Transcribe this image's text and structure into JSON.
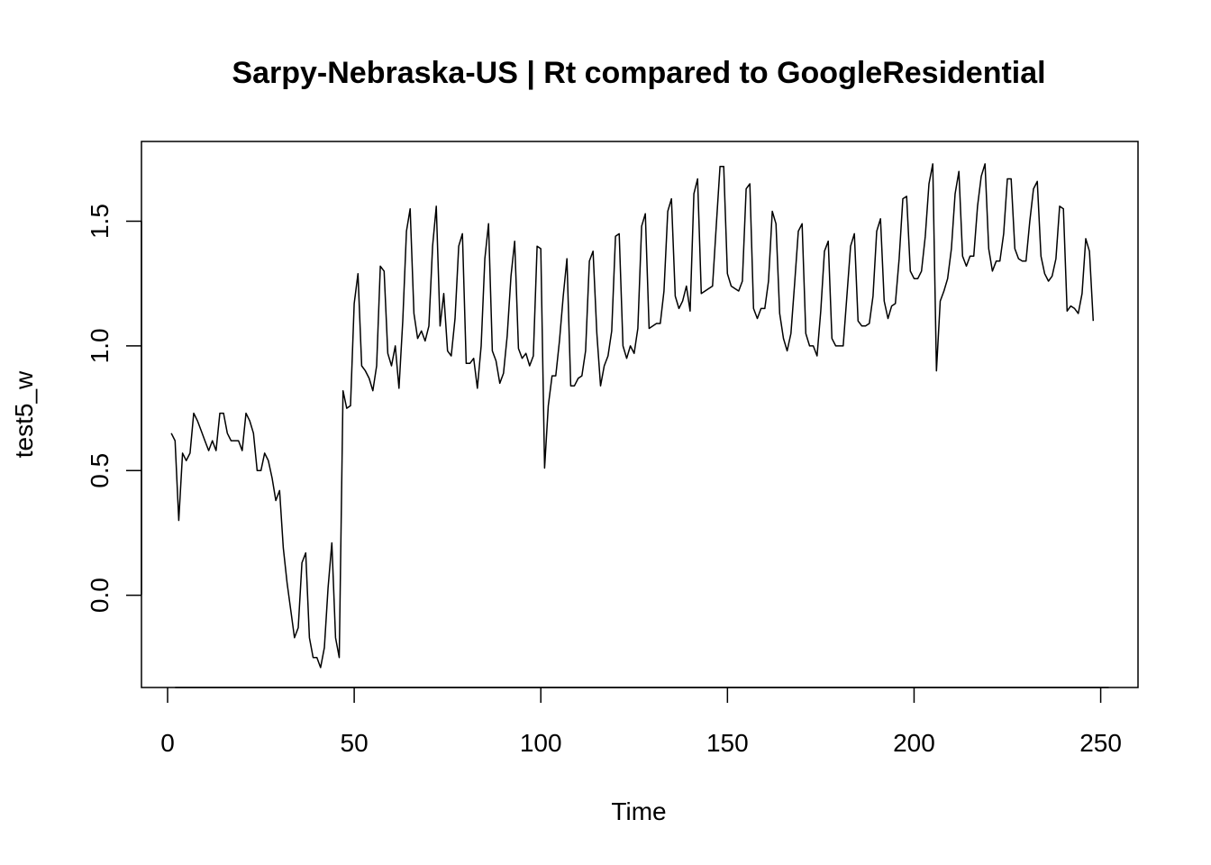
{
  "chart_data": {
    "type": "line",
    "title": "Sarpy-Nebraska-US | Rt compared to GoogleResidential",
    "xlabel": "Time",
    "ylabel": "test5_w",
    "xlim": [
      -7,
      260
    ],
    "ylim": [
      -0.37,
      1.82
    ],
    "xticks": [
      0,
      50,
      100,
      150,
      200,
      250
    ],
    "yticks": [
      0.0,
      0.5,
      1.0,
      1.5
    ],
    "xtick_labels": [
      "0",
      "50",
      "100",
      "150",
      "200",
      "250"
    ],
    "ytick_labels": [
      "0.0",
      "0.5",
      "1.0",
      "1.5"
    ],
    "grid": false,
    "series": [
      {
        "x": [
          1,
          2,
          3,
          4,
          5,
          6,
          7,
          8,
          9,
          10,
          11,
          12,
          13,
          14,
          15,
          16,
          17,
          18,
          19,
          20,
          21,
          22,
          23,
          24,
          25,
          26,
          27,
          28,
          29,
          30,
          31,
          32,
          33,
          34,
          35,
          36,
          37,
          38,
          39,
          40,
          41,
          42,
          43,
          44,
          45,
          46,
          47,
          48,
          49,
          50,
          51,
          52,
          53,
          54,
          55,
          56,
          57,
          58,
          59,
          60,
          61,
          62,
          63,
          64,
          65,
          66,
          67,
          68,
          69,
          70,
          71,
          72,
          73,
          74,
          75,
          76,
          77,
          78,
          79,
          80,
          81,
          82,
          83,
          84,
          85,
          86,
          87,
          88,
          89,
          90,
          91,
          92,
          93,
          94,
          95,
          96,
          97,
          98,
          99,
          100,
          101,
          102,
          103,
          104,
          105,
          106,
          107,
          108,
          109,
          110,
          111,
          112,
          113,
          114,
          115,
          116,
          117,
          118,
          119,
          120,
          121,
          122,
          123,
          124,
          125,
          126,
          127,
          128,
          129,
          130,
          131,
          132,
          133,
          134,
          135,
          136,
          137,
          138,
          139,
          140,
          141,
          142,
          143,
          144,
          145,
          146,
          147,
          148,
          149,
          150,
          151,
          152,
          153,
          154,
          155,
          156,
          157,
          158,
          159,
          160,
          161,
          162,
          163,
          164,
          165,
          166,
          167,
          168,
          169,
          170,
          171,
          172,
          173,
          174,
          175,
          176,
          177,
          178,
          179,
          180,
          181,
          182,
          183,
          184,
          185,
          186,
          187,
          188,
          189,
          190,
          191,
          192,
          193,
          194,
          195,
          196,
          197,
          198,
          199,
          200,
          201,
          202,
          203,
          204,
          205,
          206,
          207,
          208,
          209,
          210,
          211,
          212,
          213,
          214,
          215,
          216,
          217,
          218,
          219,
          220,
          221,
          222,
          223,
          224,
          225,
          226,
          227,
          228,
          229,
          230,
          231,
          232,
          233,
          234,
          235,
          236,
          237,
          238,
          239,
          240,
          241,
          242,
          243,
          244,
          245,
          246,
          247,
          248
        ],
        "values": [
          0.65,
          0.62,
          0.3,
          0.57,
          0.54,
          0.57,
          0.73,
          0.7,
          0.66,
          0.62,
          0.58,
          0.62,
          0.58,
          0.73,
          0.73,
          0.65,
          0.62,
          0.62,
          0.62,
          0.58,
          0.73,
          0.7,
          0.65,
          0.5,
          0.5,
          0.57,
          0.54,
          0.47,
          0.38,
          0.42,
          0.19,
          0.05,
          -0.06,
          -0.17,
          -0.13,
          0.13,
          0.17,
          -0.17,
          -0.25,
          -0.25,
          -0.29,
          -0.21,
          0.03,
          0.21,
          -0.17,
          -0.25,
          0.82,
          0.75,
          0.76,
          1.17,
          1.29,
          0.92,
          0.9,
          0.87,
          0.82,
          0.92,
          1.32,
          1.3,
          0.97,
          0.92,
          1.0,
          0.83,
          1.1,
          1.46,
          1.55,
          1.13,
          1.03,
          1.06,
          1.02,
          1.08,
          1.4,
          1.56,
          1.08,
          1.21,
          0.98,
          0.96,
          1.11,
          1.4,
          1.45,
          0.93,
          0.93,
          0.95,
          0.83,
          1.0,
          1.35,
          1.49,
          0.98,
          0.94,
          0.85,
          0.89,
          1.04,
          1.28,
          1.42,
          0.99,
          0.95,
          0.97,
          0.92,
          0.96,
          1.4,
          1.39,
          0.51,
          0.76,
          0.88,
          0.88,
          1.02,
          1.2,
          1.35,
          0.84,
          0.84,
          0.87,
          0.88,
          0.98,
          1.34,
          1.38,
          1.05,
          0.84,
          0.92,
          0.96,
          1.06,
          1.44,
          1.45,
          1.0,
          0.95,
          1.0,
          0.97,
          1.07,
          1.48,
          1.53,
          1.07,
          1.08,
          1.09,
          1.09,
          1.22,
          1.54,
          1.59,
          1.2,
          1.15,
          1.18,
          1.24,
          1.14,
          1.61,
          1.67,
          1.21,
          1.22,
          1.23,
          1.24,
          1.48,
          1.72,
          1.72,
          1.29,
          1.24,
          1.23,
          1.22,
          1.26,
          1.63,
          1.65,
          1.15,
          1.11,
          1.15,
          1.15,
          1.26,
          1.54,
          1.49,
          1.13,
          1.03,
          0.98,
          1.05,
          1.25,
          1.46,
          1.49,
          1.05,
          1.0,
          1.0,
          0.96,
          1.14,
          1.38,
          1.42,
          1.03,
          1.0,
          1.0,
          1.0,
          1.2,
          1.4,
          1.45,
          1.1,
          1.08,
          1.08,
          1.09,
          1.2,
          1.46,
          1.51,
          1.18,
          1.11,
          1.16,
          1.17,
          1.35,
          1.59,
          1.6,
          1.3,
          1.27,
          1.27,
          1.3,
          1.44,
          1.65,
          1.73,
          0.9,
          1.18,
          1.22,
          1.27,
          1.39,
          1.61,
          1.7,
          1.36,
          1.32,
          1.36,
          1.36,
          1.56,
          1.68,
          1.73,
          1.39,
          1.3,
          1.34,
          1.34,
          1.45,
          1.67,
          1.67,
          1.39,
          1.35,
          1.34,
          1.34,
          1.5,
          1.63,
          1.66,
          1.36,
          1.29,
          1.26,
          1.28,
          1.35,
          1.56,
          1.55,
          1.14,
          1.16,
          1.15,
          1.13,
          1.21,
          1.43,
          1.38,
          1.1
        ]
      }
    ]
  }
}
